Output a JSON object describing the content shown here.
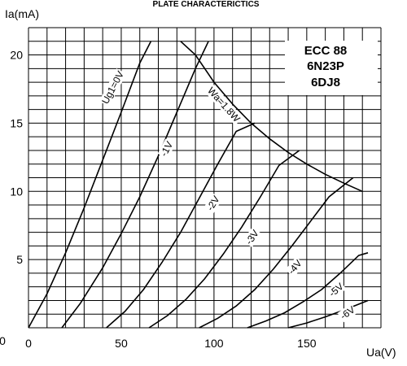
{
  "chart_data": {
    "type": "line",
    "title": "PLATE CHARACTERICTICS",
    "xlabel": "Ua(V)",
    "ylabel": "Ia(mA)",
    "xlim": [
      0,
      190
    ],
    "ylim": [
      0,
      22
    ],
    "grid": true,
    "x_ticks": [
      "0",
      "50",
      "100",
      "150"
    ],
    "x_tick_values": [
      0,
      50,
      100,
      150
    ],
    "y_ticks": [
      "5",
      "10",
      "15",
      "20"
    ],
    "y_tick_values": [
      5,
      10,
      15,
      20
    ],
    "origin_label": "0",
    "tube_types": [
      "ECC 88",
      "6N23P",
      "6DJ8"
    ],
    "series": [
      {
        "name": "Ug1=0V",
        "points": [
          [
            0,
            0
          ],
          [
            10,
            2.5
          ],
          [
            20,
            5.5
          ],
          [
            30,
            8.8
          ],
          [
            40,
            12.3
          ],
          [
            50,
            15.8
          ],
          [
            60,
            19.4
          ],
          [
            66,
            21
          ]
        ]
      },
      {
        "name": "-1V",
        "points": [
          [
            18,
            0
          ],
          [
            28,
            1.8
          ],
          [
            40,
            4.4
          ],
          [
            50,
            6.9
          ],
          [
            60,
            9.6
          ],
          [
            70,
            12.6
          ],
          [
            80,
            15.8
          ],
          [
            90,
            19
          ],
          [
            97,
            21
          ]
        ]
      },
      {
        "name": "-2V",
        "points": [
          [
            42,
            0
          ],
          [
            52,
            1.2
          ],
          [
            62,
            2.8
          ],
          [
            72,
            4.8
          ],
          [
            82,
            7
          ],
          [
            92,
            9.5
          ],
          [
            102,
            12
          ],
          [
            112,
            14.4
          ],
          [
            122,
            15
          ]
        ]
      },
      {
        "name": "-3V",
        "points": [
          [
            65,
            0
          ],
          [
            75,
            0.9
          ],
          [
            85,
            2.1
          ],
          [
            95,
            3.6
          ],
          [
            105,
            5.4
          ],
          [
            115,
            7.4
          ],
          [
            125,
            9.6
          ],
          [
            135,
            11.9
          ],
          [
            146,
            13
          ]
        ]
      },
      {
        "name": "-4V",
        "points": [
          [
            92,
            0
          ],
          [
            102,
            0.7
          ],
          [
            112,
            1.6
          ],
          [
            122,
            2.8
          ],
          [
            132,
            4.3
          ],
          [
            142,
            6
          ],
          [
            152,
            7.8
          ],
          [
            162,
            9.6
          ],
          [
            175,
            11
          ]
        ]
      },
      {
        "name": "-5V",
        "points": [
          [
            118,
            0
          ],
          [
            128,
            0.5
          ],
          [
            138,
            1.1
          ],
          [
            148,
            1.9
          ],
          [
            158,
            2.8
          ],
          [
            168,
            4
          ],
          [
            178,
            5.3
          ],
          [
            183,
            5.5
          ]
        ]
      },
      {
        "name": "-6V",
        "points": [
          [
            140,
            0
          ],
          [
            150,
            0.35
          ],
          [
            160,
            0.8
          ],
          [
            170,
            1.3
          ],
          [
            183,
            2
          ]
        ]
      },
      {
        "name": "Wa=1.8W",
        "points": [
          [
            82,
            21
          ],
          [
            90,
            20
          ],
          [
            100,
            18
          ],
          [
            110,
            16.4
          ],
          [
            120,
            15
          ],
          [
            130,
            13.85
          ],
          [
            140,
            12.85
          ],
          [
            150,
            12
          ],
          [
            160,
            11.25
          ],
          [
            170,
            10.6
          ],
          [
            180,
            10
          ]
        ]
      }
    ],
    "series_labels": [
      {
        "text": "Ug1=0V",
        "x": 47,
        "y": 17.5,
        "angle": -62
      },
      {
        "text": "-1V",
        "x": 76,
        "y": 13,
        "angle": -62
      },
      {
        "text": "-2V",
        "x": 101,
        "y": 9,
        "angle": -58
      },
      {
        "text": "-3V",
        "x": 122,
        "y": 6.5,
        "angle": -55
      },
      {
        "text": "-4V",
        "x": 145,
        "y": 4.3,
        "angle": -50
      },
      {
        "text": "-5V",
        "x": 167,
        "y": 2.6,
        "angle": -40
      },
      {
        "text": "-6V",
        "x": 173,
        "y": 0.9,
        "angle": -35
      },
      {
        "text": "Wa=1.8W",
        "x": 104,
        "y": 16.2,
        "angle": 48
      }
    ]
  }
}
